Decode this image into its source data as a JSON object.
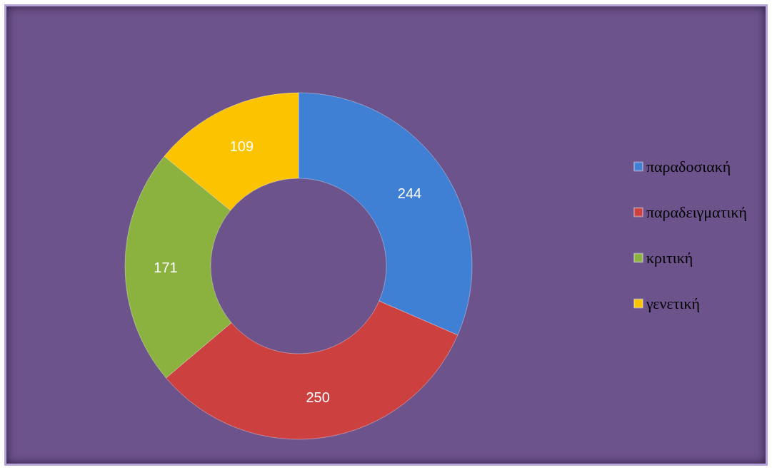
{
  "chart_data": {
    "type": "donut",
    "categories": [
      "παραδοσιακή",
      "παραδειγματική",
      "κριτική",
      "γενετική"
    ],
    "values": [
      244,
      250,
      171,
      109
    ],
    "colors": [
      "#3f7fd4",
      "#cc4040",
      "#8bb23e",
      "#fcc400"
    ],
    "data_labels": true,
    "legend": "right"
  }
}
